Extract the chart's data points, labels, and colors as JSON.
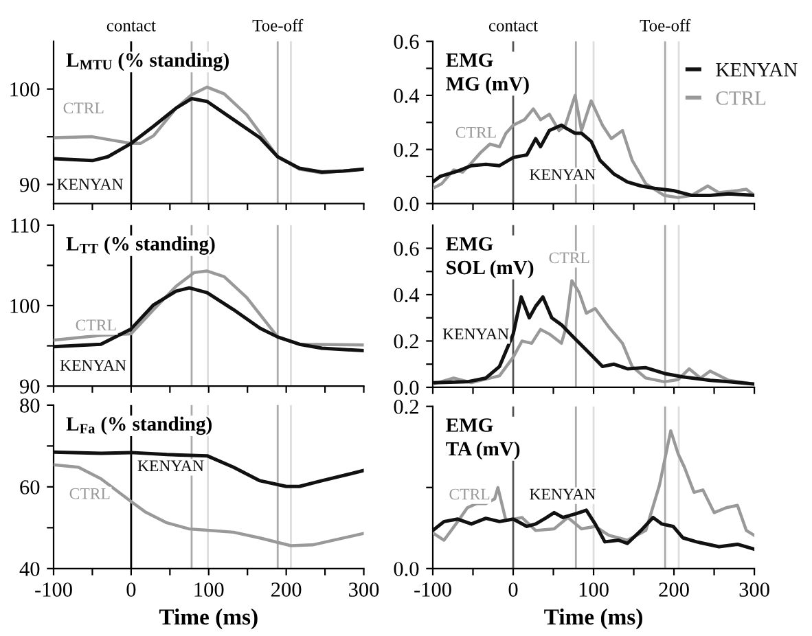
{
  "chart_data": [
    {
      "type": "line",
      "title": "L$_{MTU}$ (% standing)",
      "xlim": [
        -100,
        300
      ],
      "ylim": [
        88,
        105
      ],
      "xticks": [
        -100,
        {
          "value": -50,
          "label": null
        },
        0,
        {
          "value": 50,
          "label": null
        },
        100,
        {
          "value": 150,
          "label": null
        },
        200,
        {
          "value": 250,
          "label": null
        },
        300
      ],
      "yticks": [
        90,
        {
          "value": 95,
          "label": null
        },
        100
      ],
      "tick_labels": "y",
      "grid": false,
      "legend": false,
      "ref_lines": [
        {
          "axis": "x",
          "value": 0,
          "label": "contact",
          "color": "#000000"
        },
        {
          "axis": "x",
          "value": 78,
          "color": "#aaaaaa"
        },
        {
          "axis": "x",
          "value": 99,
          "color": "#dddddd"
        },
        {
          "axis": "x",
          "value": 189,
          "label": "Toe-off",
          "color": "#aaaaaa"
        },
        {
          "axis": "x",
          "value": 206,
          "color": "#dddddd"
        }
      ],
      "series": [
        {
          "name": "KENYAN",
          "color": "#111111",
          "x": [
            -100,
            -50,
            -30,
            0,
            29,
            58,
            78,
            98,
            132,
            166,
            189,
            217,
            246,
            274,
            300
          ],
          "values": [
            92.7,
            92.5,
            92.9,
            94.3,
            96.1,
            98.0,
            99.0,
            98.7,
            96.8,
            94.9,
            92.9,
            91.7,
            91.3,
            91.4,
            91.6
          ]
        },
        {
          "name": "CTRL",
          "color": "#999999",
          "x": [
            -100,
            -50,
            -22,
            0,
            12,
            29,
            58,
            78,
            98,
            120,
            149,
            189,
            217,
            246,
            300
          ],
          "values": [
            94.9,
            95.0,
            94.6,
            94.3,
            94.3,
            95.1,
            98.0,
            99.4,
            100.2,
            99.5,
            97.3,
            92.9,
            91.6,
            91.2,
            91.6
          ]
        }
      ]
    },
    {
      "type": "line",
      "title": "L$_{TT}$ (% standing)",
      "xlim": [
        -100,
        300
      ],
      "ylim": [
        90,
        110
      ],
      "xticks": [
        -100,
        {
          "value": -50,
          "label": null
        },
        0,
        {
          "value": 50,
          "label": null
        },
        100,
        {
          "value": 150,
          "label": null
        },
        200,
        {
          "value": 250,
          "label": null
        },
        300
      ],
      "yticks": [
        90,
        {
          "value": 95,
          "label": null
        },
        100,
        {
          "value": 105,
          "label": null
        },
        110
      ],
      "tick_labels": "y",
      "grid": false,
      "legend": false,
      "ref_lines": [
        {
          "axis": "x",
          "value": 0,
          "color": "#000000"
        },
        {
          "axis": "x",
          "value": 78,
          "color": "#aaaaaa"
        },
        {
          "axis": "x",
          "value": 99,
          "color": "#dddddd"
        },
        {
          "axis": "x",
          "value": 189,
          "color": "#aaaaaa"
        },
        {
          "axis": "x",
          "value": 206,
          "color": "#dddddd"
        }
      ],
      "series": [
        {
          "name": "KENYAN",
          "color": "#111111",
          "x": [
            -100,
            -39,
            0,
            29,
            58,
            75,
            98,
            132,
            166,
            189,
            217,
            246,
            300
          ],
          "values": [
            94.9,
            95.2,
            97.1,
            100.1,
            101.8,
            102.2,
            101.6,
            99.5,
            97.2,
            96.1,
            95.2,
            94.7,
            94.4
          ]
        },
        {
          "name": "CTRL",
          "color": "#999999",
          "x": [
            -100,
            -39,
            0,
            29,
            58,
            81,
            98,
            120,
            149,
            189,
            217,
            300
          ],
          "values": [
            95.7,
            96.3,
            96.5,
            99.5,
            102.4,
            104.1,
            104.3,
            103.6,
            101.0,
            96.1,
            95.2,
            95.1
          ]
        }
      ]
    },
    {
      "type": "line",
      "title": "L$_{Fa}$ (% standing)",
      "xlabel": "Time (ms)",
      "xlim": [
        -100,
        300
      ],
      "ylim": [
        40,
        80
      ],
      "xticks": [
        -100,
        {
          "value": -50,
          "label": null
        },
        0,
        {
          "value": 50,
          "label": null
        },
        100,
        {
          "value": 150,
          "label": null
        },
        200,
        {
          "value": 250,
          "label": null
        },
        300
      ],
      "yticks": [
        40,
        {
          "value": 50,
          "label": null
        },
        60,
        {
          "value": 70,
          "label": null
        },
        80
      ],
      "grid": false,
      "legend": false,
      "ref_lines": [
        {
          "axis": "x",
          "value": 0,
          "color": "#000000"
        },
        {
          "axis": "x",
          "value": 78,
          "color": "#aaaaaa"
        },
        {
          "axis": "x",
          "value": 99,
          "color": "#dddddd"
        },
        {
          "axis": "x",
          "value": 189,
          "color": "#aaaaaa"
        },
        {
          "axis": "x",
          "value": 206,
          "color": "#dddddd"
        }
      ],
      "series": [
        {
          "name": "KENYAN",
          "color": "#111111",
          "x": [
            -100,
            -39,
            0,
            46,
            98,
            132,
            166,
            200,
            217,
            246,
            300
          ],
          "values": [
            68.5,
            68.2,
            68.4,
            67.9,
            67.6,
            64.8,
            61.5,
            60.1,
            60.1,
            61.5,
            64.0
          ]
        },
        {
          "name": "CTRL",
          "color": "#999999",
          "x": [
            -100,
            -68,
            -39,
            0,
            18,
            46,
            75,
            98,
            132,
            166,
            206,
            234,
            300
          ],
          "values": [
            65.4,
            64.8,
            62.0,
            56.4,
            53.9,
            51.2,
            49.7,
            49.4,
            48.9,
            47.5,
            45.6,
            45.8,
            48.6
          ]
        }
      ]
    },
    {
      "type": "line",
      "title": "EMG\nMG (mV)",
      "xlim": [
        -100,
        300
      ],
      "ylim": [
        0,
        0.6
      ],
      "xticks": [
        -100,
        {
          "value": -50,
          "label": null
        },
        0,
        {
          "value": 50,
          "label": null
        },
        100,
        {
          "value": 150,
          "label": null
        },
        200,
        {
          "value": 250,
          "label": null
        },
        300
      ],
      "yticks": [
        {
          "value": 0,
          "label": "0.0"
        },
        {
          "value": 0.1,
          "label": null
        },
        0.2,
        {
          "value": 0.3,
          "label": null
        },
        0.4,
        {
          "value": 0.5,
          "label": null
        },
        0.6
      ],
      "tick_labels": "y",
      "grid": false,
      "legend": "top right",
      "ref_lines": [
        {
          "axis": "x",
          "value": 0,
          "label": "contact",
          "color": "#555555"
        },
        {
          "axis": "x",
          "value": 78,
          "color": "#aaaaaa"
        },
        {
          "axis": "x",
          "value": 100,
          "color": "#dddddd"
        },
        {
          "axis": "x",
          "value": 189,
          "label": "Toe-off",
          "color": "#aaaaaa"
        },
        {
          "axis": "x",
          "value": 206,
          "color": "#dddddd"
        }
      ],
      "series": [
        {
          "name": "KENYAN",
          "color": "#111111",
          "x": [
            -100,
            -91,
            -69,
            -52,
            -34,
            -17,
            0,
            17,
            28,
            34,
            45,
            60,
            65,
            77,
            85,
            97,
            108,
            125,
            142,
            159,
            176,
            199,
            222,
            245,
            268,
            300
          ],
          "values": [
            0.08,
            0.1,
            0.12,
            0.14,
            0.145,
            0.14,
            0.17,
            0.18,
            0.24,
            0.21,
            0.27,
            0.29,
            0.28,
            0.26,
            0.26,
            0.23,
            0.16,
            0.11,
            0.08,
            0.065,
            0.056,
            0.048,
            0.03,
            0.03,
            0.036,
            0.03
          ]
        },
        {
          "name": "CTRL",
          "color": "#999999",
          "x": [
            -100,
            -89,
            -74,
            -63,
            -52,
            -40,
            -29,
            -17,
            -9,
            0,
            14,
            25,
            34,
            45,
            57,
            65,
            77,
            85,
            97,
            111,
            122,
            136,
            148,
            165,
            188,
            205,
            222,
            242,
            256,
            279,
            290,
            300
          ],
          "values": [
            0.056,
            0.073,
            0.124,
            0.116,
            0.15,
            0.19,
            0.22,
            0.21,
            0.26,
            0.29,
            0.31,
            0.35,
            0.31,
            0.33,
            0.27,
            0.29,
            0.4,
            0.27,
            0.38,
            0.29,
            0.24,
            0.27,
            0.16,
            0.073,
            0.03,
            0.022,
            0.03,
            0.065,
            0.04,
            0.048,
            0.053,
            0.03
          ]
        }
      ]
    },
    {
      "type": "line",
      "title": "EMG\nSOL (mV)",
      "xlim": [
        -100,
        300
      ],
      "ylim": [
        0,
        0.7
      ],
      "xticks": [
        -100,
        {
          "value": -50,
          "label": null
        },
        0,
        {
          "value": 50,
          "label": null
        },
        100,
        {
          "value": 150,
          "label": null
        },
        200,
        {
          "value": 250,
          "label": null
        },
        300
      ],
      "yticks": [
        {
          "value": 0,
          "label": "0.0"
        },
        {
          "value": 0.1,
          "label": null
        },
        0.2,
        {
          "value": 0.3,
          "label": null
        },
        0.4,
        {
          "value": 0.5,
          "label": null
        },
        0.6
      ],
      "tick_labels": "y",
      "grid": false,
      "legend": false,
      "ref_lines": [
        {
          "axis": "x",
          "value": 0,
          "color": "#555555"
        },
        {
          "axis": "x",
          "value": 78,
          "color": "#aaaaaa"
        },
        {
          "axis": "x",
          "value": 100,
          "color": "#dddddd"
        },
        {
          "axis": "x",
          "value": 189,
          "color": "#aaaaaa"
        },
        {
          "axis": "x",
          "value": 206,
          "color": "#dddddd"
        }
      ],
      "series": [
        {
          "name": "KENYAN",
          "color": "#111111",
          "x": [
            -100,
            -57,
            -34,
            -17,
            0,
            10,
            20,
            28,
            37,
            48,
            60,
            74,
            97,
            111,
            125,
            142,
            165,
            188,
            211,
            245,
            268,
            300
          ],
          "values": [
            0.02,
            0.024,
            0.04,
            0.09,
            0.23,
            0.39,
            0.3,
            0.35,
            0.39,
            0.3,
            0.27,
            0.22,
            0.14,
            0.09,
            0.1,
            0.08,
            0.085,
            0.06,
            0.045,
            0.03,
            0.024,
            0.014
          ]
        },
        {
          "name": "CTRL",
          "color": "#999999",
          "x": [
            -100,
            -74,
            -52,
            -17,
            0,
            11,
            23,
            34,
            45,
            60,
            65,
            73,
            82,
            91,
            102,
            119,
            136,
            148,
            165,
            188,
            205,
            219,
            233,
            245,
            268,
            300
          ],
          "values": [
            0.014,
            0.04,
            0.02,
            0.05,
            0.13,
            0.2,
            0.19,
            0.25,
            0.23,
            0.19,
            0.25,
            0.46,
            0.41,
            0.32,
            0.34,
            0.26,
            0.19,
            0.09,
            0.04,
            0.024,
            0.033,
            0.08,
            0.04,
            0.07,
            0.03,
            0.014
          ]
        }
      ]
    },
    {
      "type": "line",
      "title": "EMG\nTA (mV)",
      "xlabel": "Time (ms)",
      "xlim": [
        -100,
        300
      ],
      "ylim": [
        0,
        0.2
      ],
      "xticks": [
        -100,
        {
          "value": -50,
          "label": null
        },
        0,
        {
          "value": 50,
          "label": null
        },
        100,
        {
          "value": 150,
          "label": null
        },
        200,
        {
          "value": 250,
          "label": null
        },
        300
      ],
      "yticks": [
        {
          "value": 0,
          "label": "0.0"
        },
        {
          "value": 0.1,
          "label": null
        },
        0.2
      ],
      "grid": false,
      "legend": false,
      "ref_lines": [
        {
          "axis": "x",
          "value": 0,
          "color": "#555555"
        },
        {
          "axis": "x",
          "value": 78,
          "color": "#aaaaaa"
        },
        {
          "axis": "x",
          "value": 100,
          "color": "#dddddd"
        },
        {
          "axis": "x",
          "value": 189,
          "color": "#aaaaaa"
        },
        {
          "axis": "x",
          "value": 206,
          "color": "#dddddd"
        }
      ],
      "series": [
        {
          "name": "KENYAN",
          "color": "#111111",
          "x": [
            -100,
            -86,
            -69,
            -52,
            -34,
            -17,
            0,
            17,
            28,
            40,
            51,
            62,
            79,
            91,
            102,
            114,
            131,
            142,
            159,
            174,
            185,
            199,
            211,
            228,
            256,
            279,
            300
          ],
          "values": [
            0.047,
            0.058,
            0.061,
            0.055,
            0.062,
            0.058,
            0.061,
            0.052,
            0.055,
            0.062,
            0.069,
            0.063,
            0.068,
            0.072,
            0.055,
            0.033,
            0.035,
            0.031,
            0.047,
            0.063,
            0.055,
            0.052,
            0.038,
            0.033,
            0.027,
            0.03,
            0.024
          ]
        },
        {
          "name": "CTRL",
          "color": "#999999",
          "x": [
            -100,
            -86,
            -69,
            -57,
            -46,
            -34,
            -23,
            -19,
            -9,
            11,
            28,
            51,
            68,
            85,
            102,
            119,
            142,
            165,
            182,
            196,
            205,
            213,
            225,
            236,
            250,
            265,
            279,
            290,
            300
          ],
          "values": [
            0.044,
            0.035,
            0.058,
            0.075,
            0.08,
            0.08,
            0.086,
            0.1,
            0.059,
            0.063,
            0.047,
            0.049,
            0.063,
            0.049,
            0.052,
            0.041,
            0.035,
            0.047,
            0.103,
            0.17,
            0.142,
            0.125,
            0.094,
            0.097,
            0.069,
            0.075,
            0.078,
            0.047,
            0.041
          ]
        }
      ]
    }
  ]
}
